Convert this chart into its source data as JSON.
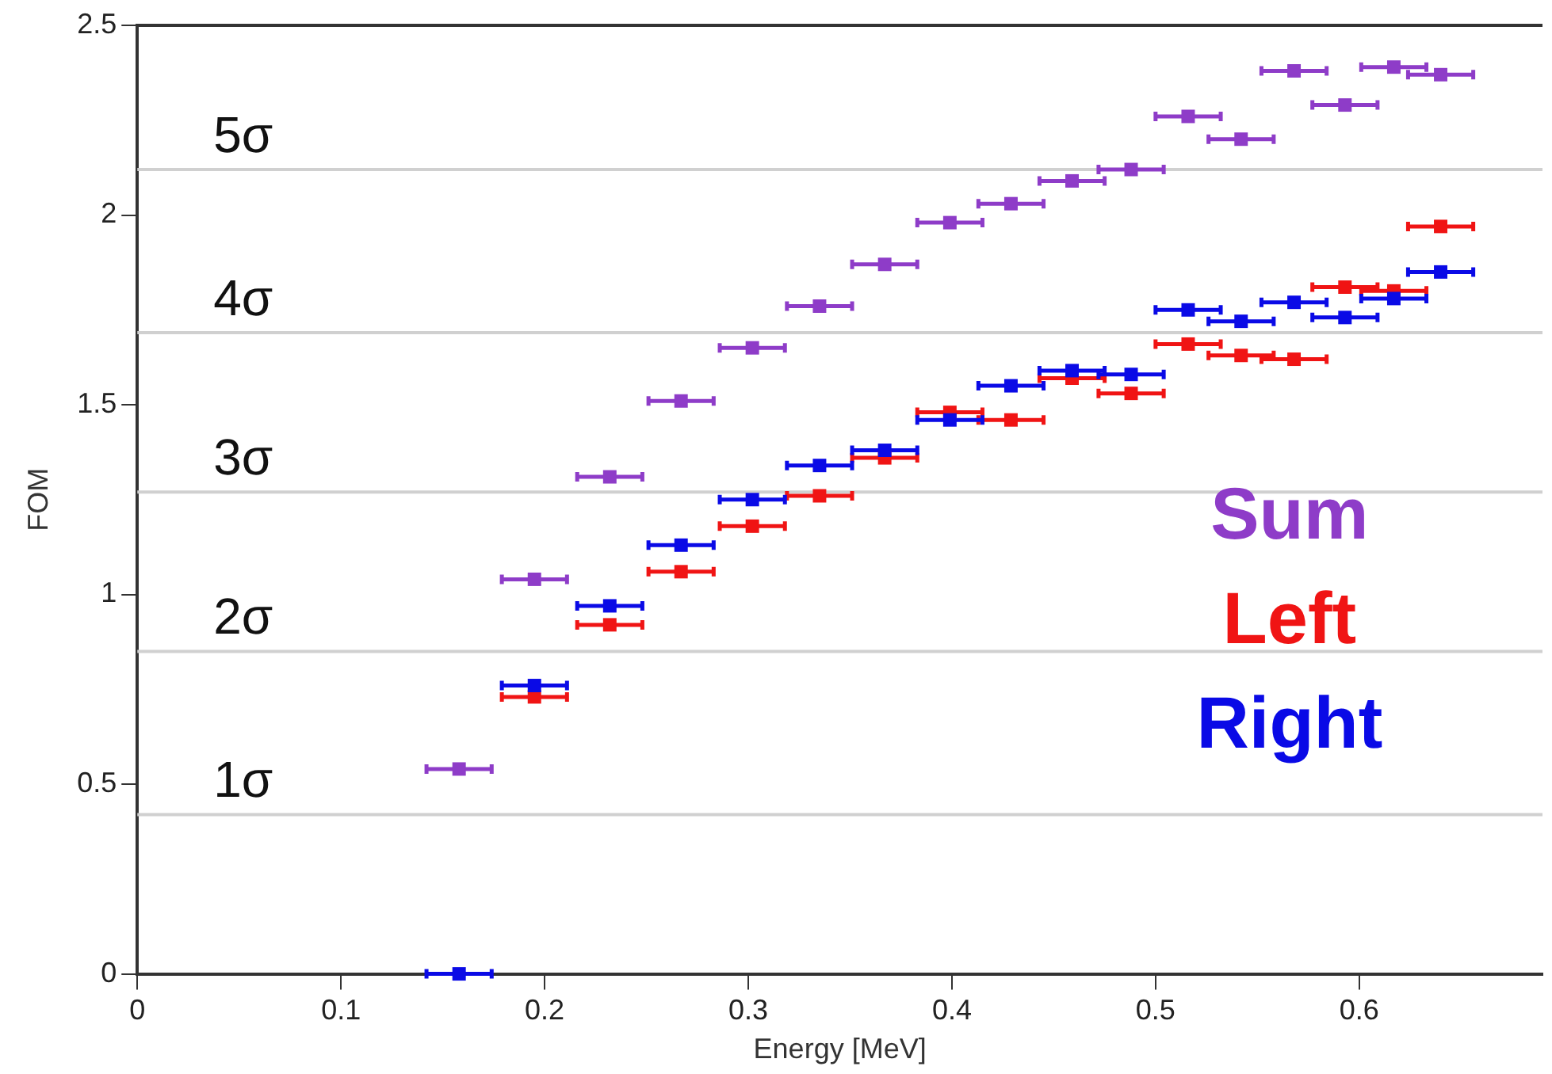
{
  "chart_data": {
    "type": "scatter",
    "xlabel": "Energy [MeV]",
    "ylabel": "FOM",
    "xlim": [
      0,
      0.69
    ],
    "xticks": [
      0,
      0.1,
      0.2,
      0.3,
      0.4,
      0.5,
      0.6
    ],
    "ylim": [
      0,
      2.5
    ],
    "yticks": [
      0,
      0.5,
      1,
      1.5,
      2,
      2.5
    ],
    "grid": false,
    "marker": "square",
    "legend": "right",
    "x": [
      0.158,
      0.195,
      0.232,
      0.267,
      0.302,
      0.335,
      0.367,
      0.399,
      0.429,
      0.459,
      0.488,
      0.516,
      0.542,
      0.568,
      0.593,
      0.617,
      0.64
    ],
    "series": [
      {
        "name": "Sum",
        "color": "#8e3cc8",
        "values": [
          0.54,
          1.04,
          1.31,
          1.51,
          1.65,
          1.76,
          1.87,
          1.98,
          2.03,
          2.09,
          2.12,
          2.26,
          2.2,
          2.38,
          2.29,
          2.39,
          2.37
        ],
        "xerrors": [
          0.016,
          0.016,
          0.016,
          0.016,
          0.016,
          0.016,
          0.016,
          0.016,
          0.016,
          0.016,
          0.016,
          0.016,
          0.016,
          0.016,
          0.016,
          0.016,
          0.016
        ]
      },
      {
        "name": "Left",
        "color": "#f01414",
        "values": [
          null,
          0.73,
          0.92,
          1.06,
          1.18,
          1.26,
          1.36,
          1.48,
          1.46,
          1.57,
          1.53,
          1.66,
          1.63,
          1.62,
          1.81,
          1.8,
          1.97
        ],
        "xerrors": [
          null,
          0.016,
          0.016,
          0.016,
          0.016,
          0.016,
          0.016,
          0.016,
          0.016,
          0.016,
          0.016,
          0.016,
          0.016,
          0.016,
          0.016,
          0.016,
          0.016
        ]
      },
      {
        "name": "Right",
        "color": "#0a0ae6",
        "values": [
          0,
          0.76,
          0.97,
          1.13,
          1.25,
          1.34,
          1.38,
          1.46,
          1.55,
          1.59,
          1.58,
          1.75,
          1.72,
          1.77,
          1.73,
          1.78,
          1.85
        ],
        "xerrors": [
          0.016,
          0.016,
          0.016,
          0.016,
          0.016,
          0.016,
          0.016,
          0.016,
          0.016,
          0.016,
          0.016,
          0.016,
          0.016,
          0.016,
          0.016,
          0.016,
          0.016
        ]
      }
    ],
    "ref_lines": [
      {
        "axis": "y",
        "value": 0.42,
        "label": "1σ",
        "color": "#d0d0d0"
      },
      {
        "axis": "y",
        "value": 0.85,
        "label": "2σ",
        "color": "#d0d0d0"
      },
      {
        "axis": "y",
        "value": 1.27,
        "label": "3σ",
        "color": "#d0d0d0"
      },
      {
        "axis": "y",
        "value": 1.69,
        "label": "4σ",
        "color": "#d0d0d0"
      },
      {
        "axis": "y",
        "value": 2.12,
        "label": "5σ",
        "color": "#d0d0d0"
      }
    ]
  }
}
